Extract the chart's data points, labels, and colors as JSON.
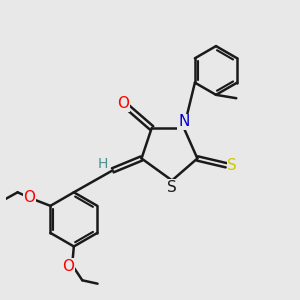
{
  "background_color": "#e8e8e8",
  "bond_color": "#1a1a1a",
  "bond_width": 1.8,
  "atom_colors": {
    "O": "#ff0000",
    "N": "#0000cc",
    "S": "#cccc00",
    "H": "#4a9090",
    "C": "#1a1a1a"
  },
  "font_size_atom": 11,
  "figsize": [
    3.0,
    3.0
  ],
  "dpi": 100
}
